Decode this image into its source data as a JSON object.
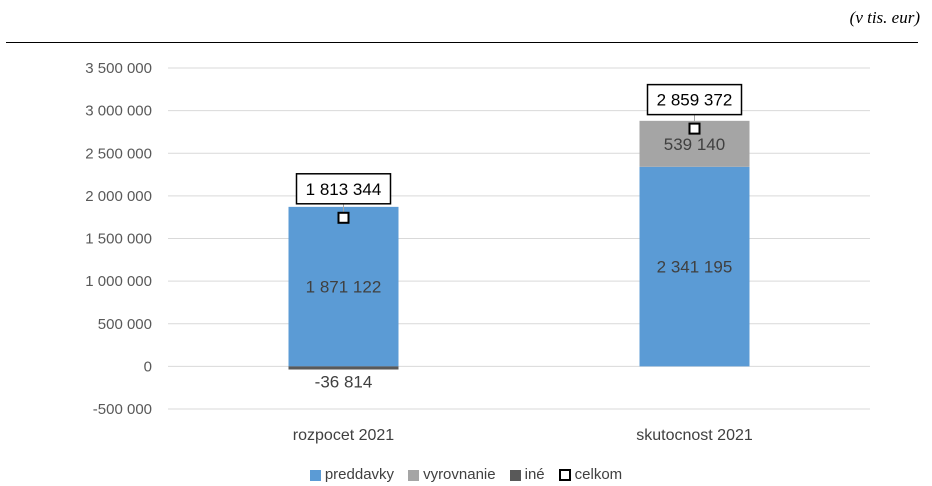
{
  "unit_note": "(v tis. eur)",
  "chart_data": {
    "type": "bar",
    "stacked": true,
    "categories": [
      "rozpocet 2021",
      "skutocnost 2021"
    ],
    "series": [
      {
        "name": "preddavky",
        "values": [
          1871122,
          2341195
        ],
        "labels": [
          "1 871 122",
          "2 341 195"
        ],
        "color": "#5b9bd5"
      },
      {
        "name": "vyrovnanie",
        "values": [
          0,
          539140
        ],
        "labels": [
          "",
          "539 140"
        ],
        "color": "#a5a5a5"
      },
      {
        "name": "iné",
        "values": [
          -36814,
          0
        ],
        "labels": [
          "-36 814",
          ""
        ],
        "color": "#595959"
      }
    ],
    "totals": {
      "name": "celkom",
      "values": [
        1813344,
        2859372
      ],
      "labels": [
        "1 813 344",
        "2 859 372"
      ]
    },
    "ylim": [
      -500000,
      3500000
    ],
    "yticks": [
      -500000,
      0,
      500000,
      1000000,
      1500000,
      2000000,
      2500000,
      3000000,
      3500000
    ],
    "ytick_labels": [
      "-500 000",
      "0",
      "500 000",
      "1 000 000",
      "1 500 000",
      "2 000 000",
      "2 500 000",
      "3 000 000",
      "3 500 000"
    ],
    "grid": true,
    "legend_position": "bottom"
  }
}
